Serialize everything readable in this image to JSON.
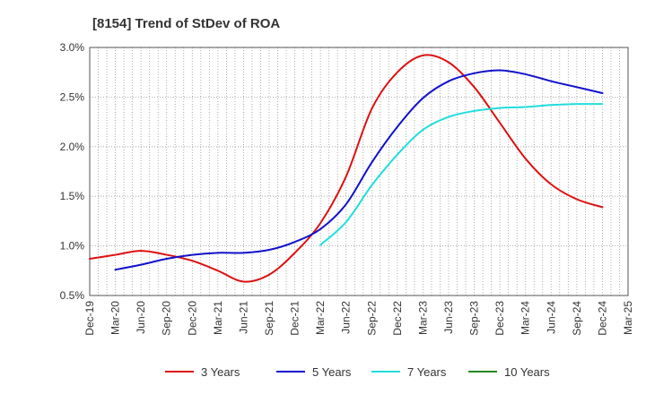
{
  "chart_data": {
    "type": "line",
    "title": "[8154]  Trend of StDev of ROA",
    "xlabel": "",
    "ylabel": "",
    "x_ticks": [
      "Dec-19",
      "Mar-20",
      "Jun-20",
      "Sep-20",
      "Dec-20",
      "Mar-21",
      "Jun-21",
      "Sep-21",
      "Dec-21",
      "Mar-22",
      "Jun-22",
      "Sep-22",
      "Dec-22",
      "Mar-23",
      "Jun-23",
      "Sep-23",
      "Dec-23",
      "Mar-24",
      "Jun-24",
      "Sep-24",
      "Dec-24",
      "Mar-25"
    ],
    "y_ticks": [
      "0.5%",
      "1.0%",
      "1.5%",
      "2.0%",
      "2.5%",
      "3.0%"
    ],
    "ylim": [
      0.5,
      3.0
    ],
    "grid": true,
    "legend_position": "bottom",
    "series": [
      {
        "name": "3 Years",
        "color": "#dd1111",
        "x": [
          "Dec-19",
          "Mar-20",
          "Jun-20",
          "Sep-20",
          "Dec-20",
          "Mar-21",
          "Jun-21",
          "Sep-21",
          "Dec-21",
          "Mar-22",
          "Jun-22",
          "Sep-22",
          "Dec-22",
          "Mar-23",
          "Jun-23",
          "Sep-23",
          "Dec-23",
          "Mar-24",
          "Jun-24",
          "Sep-24",
          "Dec-24"
        ],
        "values": [
          0.87,
          0.91,
          0.95,
          0.91,
          0.85,
          0.75,
          0.64,
          0.71,
          0.93,
          1.23,
          1.7,
          2.38,
          2.75,
          2.92,
          2.85,
          2.6,
          2.24,
          1.88,
          1.62,
          1.47,
          1.39
        ]
      },
      {
        "name": "5 Years",
        "color": "#1111cc",
        "x": [
          "Mar-20",
          "Jun-20",
          "Sep-20",
          "Dec-20",
          "Mar-21",
          "Jun-21",
          "Sep-21",
          "Dec-21",
          "Mar-22",
          "Jun-22",
          "Sep-22",
          "Dec-22",
          "Mar-23",
          "Jun-23",
          "Sep-23",
          "Dec-23",
          "Mar-24",
          "Jun-24",
          "Sep-24",
          "Dec-24"
        ],
        "values": [
          0.76,
          0.81,
          0.87,
          0.91,
          0.93,
          0.93,
          0.96,
          1.04,
          1.17,
          1.42,
          1.84,
          2.2,
          2.49,
          2.66,
          2.74,
          2.77,
          2.73,
          2.66,
          2.6,
          2.54
        ]
      },
      {
        "name": "7 Years",
        "color": "#22dddd",
        "x": [
          "Mar-22",
          "Jun-22",
          "Sep-22",
          "Dec-22",
          "Mar-23",
          "Jun-23",
          "Sep-23",
          "Dec-23",
          "Mar-24",
          "Jun-24",
          "Sep-24",
          "Dec-24"
        ],
        "values": [
          1.01,
          1.24,
          1.61,
          1.92,
          2.17,
          2.3,
          2.36,
          2.39,
          2.4,
          2.42,
          2.43,
          2.43
        ]
      },
      {
        "name": "10 Years",
        "color": "#228822",
        "x": [],
        "values": []
      }
    ]
  }
}
